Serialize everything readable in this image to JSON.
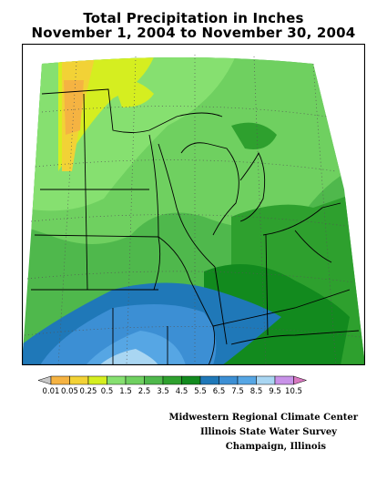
{
  "title_line1": "Total Precipitation in Inches",
  "title_line2": "November 1, 2004 to November 30, 2004",
  "legend": {
    "labels": [
      "0.01",
      "0.05",
      "0.25",
      "0.5",
      "1.5",
      "2.5",
      "3.5",
      "4.5",
      "5.5",
      "6.5",
      "7.5",
      "8.5",
      "9.5",
      "10.5"
    ],
    "colors": [
      "#c8c8c8",
      "#f5b342",
      "#f2d236",
      "#d5ee20",
      "#86e070",
      "#6fd060",
      "#4fb84c",
      "#2ea02e",
      "#128a1e",
      "#1f78b8",
      "#3c8fd4",
      "#56a6e4",
      "#a9d6f2",
      "#c892e8",
      "#d878c0"
    ]
  },
  "credits": {
    "line1": "Midwestern Regional Climate Center",
    "line2": "Illinois State Water Survey",
    "line3": "Champaign, Illinois"
  }
}
